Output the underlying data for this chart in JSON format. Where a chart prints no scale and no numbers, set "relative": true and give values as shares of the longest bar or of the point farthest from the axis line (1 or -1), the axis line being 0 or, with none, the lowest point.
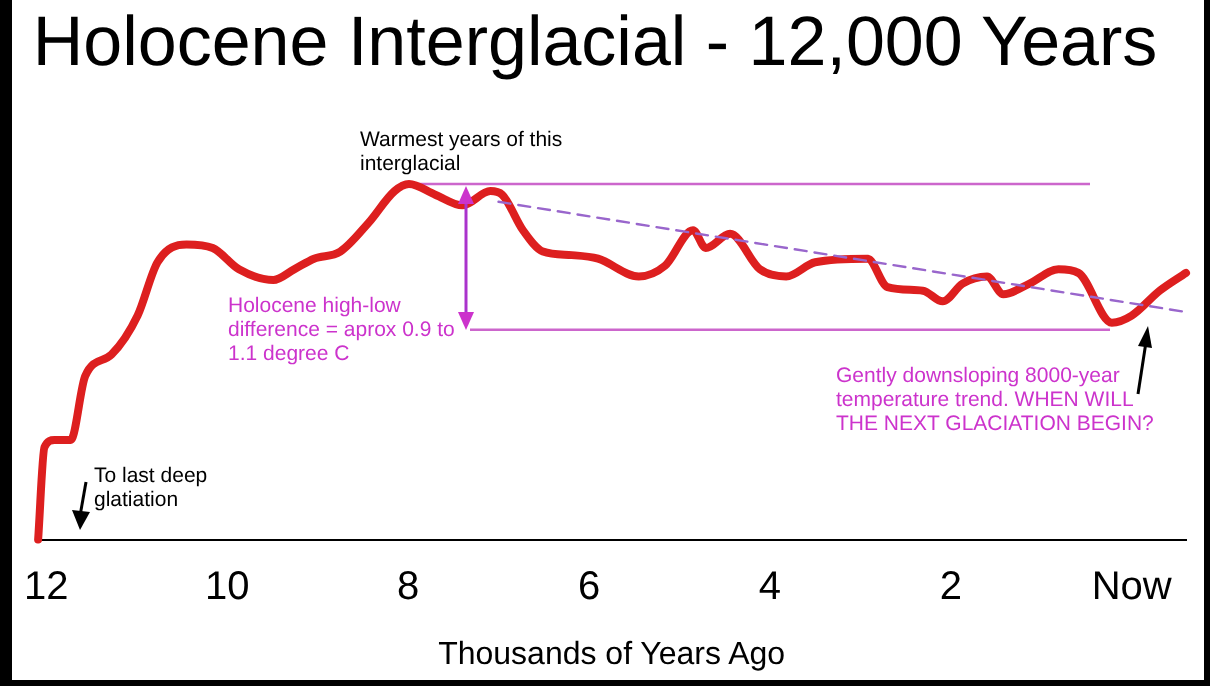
{
  "chart_data": {
    "type": "line",
    "title": "Holocene Interglacial - 12,000 Years",
    "xlabel": "Thousands of Years Ago",
    "relative": true,
    "xlim": [
      12.1,
      -0.6
    ],
    "xticks": [
      12,
      10,
      8,
      6,
      4,
      2,
      {
        "value": 0,
        "label": "Now"
      }
    ],
    "grid": false,
    "legend": false,
    "marker": "none",
    "series": [
      {
        "color": "#dd1f1f",
        "line_style": "solid",
        "x": [
          12.09,
          12.02,
          11.91,
          11.73,
          11.57,
          11.28,
          10.99,
          10.77,
          10.45,
          10.16,
          9.87,
          9.49,
          9.26,
          9.04,
          8.75,
          8.44,
          8.15,
          7.99,
          7.7,
          7.4,
          7.09,
          6.96,
          6.73,
          6.51,
          6.19,
          5.9,
          5.45,
          5.16,
          4.85,
          4.71,
          4.44,
          4.11,
          3.82,
          3.5,
          2.92,
          2.7,
          2.31,
          2.09,
          1.87,
          1.6,
          1.42,
          1.13,
          0.81,
          0.59,
          0.22,
          0,
          -0.31,
          -0.6
        ],
        "values": [
          0,
          0.26,
          0.28,
          0.28,
          0.46,
          0.52,
          0.63,
          0.78,
          0.83,
          0.82,
          0.76,
          0.73,
          0.76,
          0.79,
          0.81,
          0.89,
          0.98,
          1,
          0.97,
          0.94,
          0.98,
          0.97,
          0.87,
          0.81,
          0.8,
          0.79,
          0.74,
          0.77,
          0.87,
          0.82,
          0.86,
          0.76,
          0.74,
          0.78,
          0.79,
          0.71,
          0.7,
          0.67,
          0.72,
          0.74,
          0.69,
          0.72,
          0.76,
          0.75,
          0.61,
          0.63,
          0.7,
          0.75
        ]
      },
      {
        "type": "line",
        "color": "#9966cc",
        "line_style": "dashed",
        "x": [
          7.0,
          -0.6
        ],
        "values": [
          0.95,
          0.64
        ]
      }
    ],
    "ref_lines": [
      {
        "axis": "y",
        "value": 1.0,
        "color": "#cc66cc"
      },
      {
        "axis": "y",
        "value": 0.59,
        "color": "#cc66cc"
      }
    ],
    "annotations": [
      "Warmest years of this interglacial",
      "Holocene high-low difference = aprox 0.9 to 1.1 degree C",
      "To last deep glatiation",
      "Gently downsloping 8000-year temperature trend. WHEN WILL THE NEXT GLACIATION BEGIN?"
    ]
  }
}
